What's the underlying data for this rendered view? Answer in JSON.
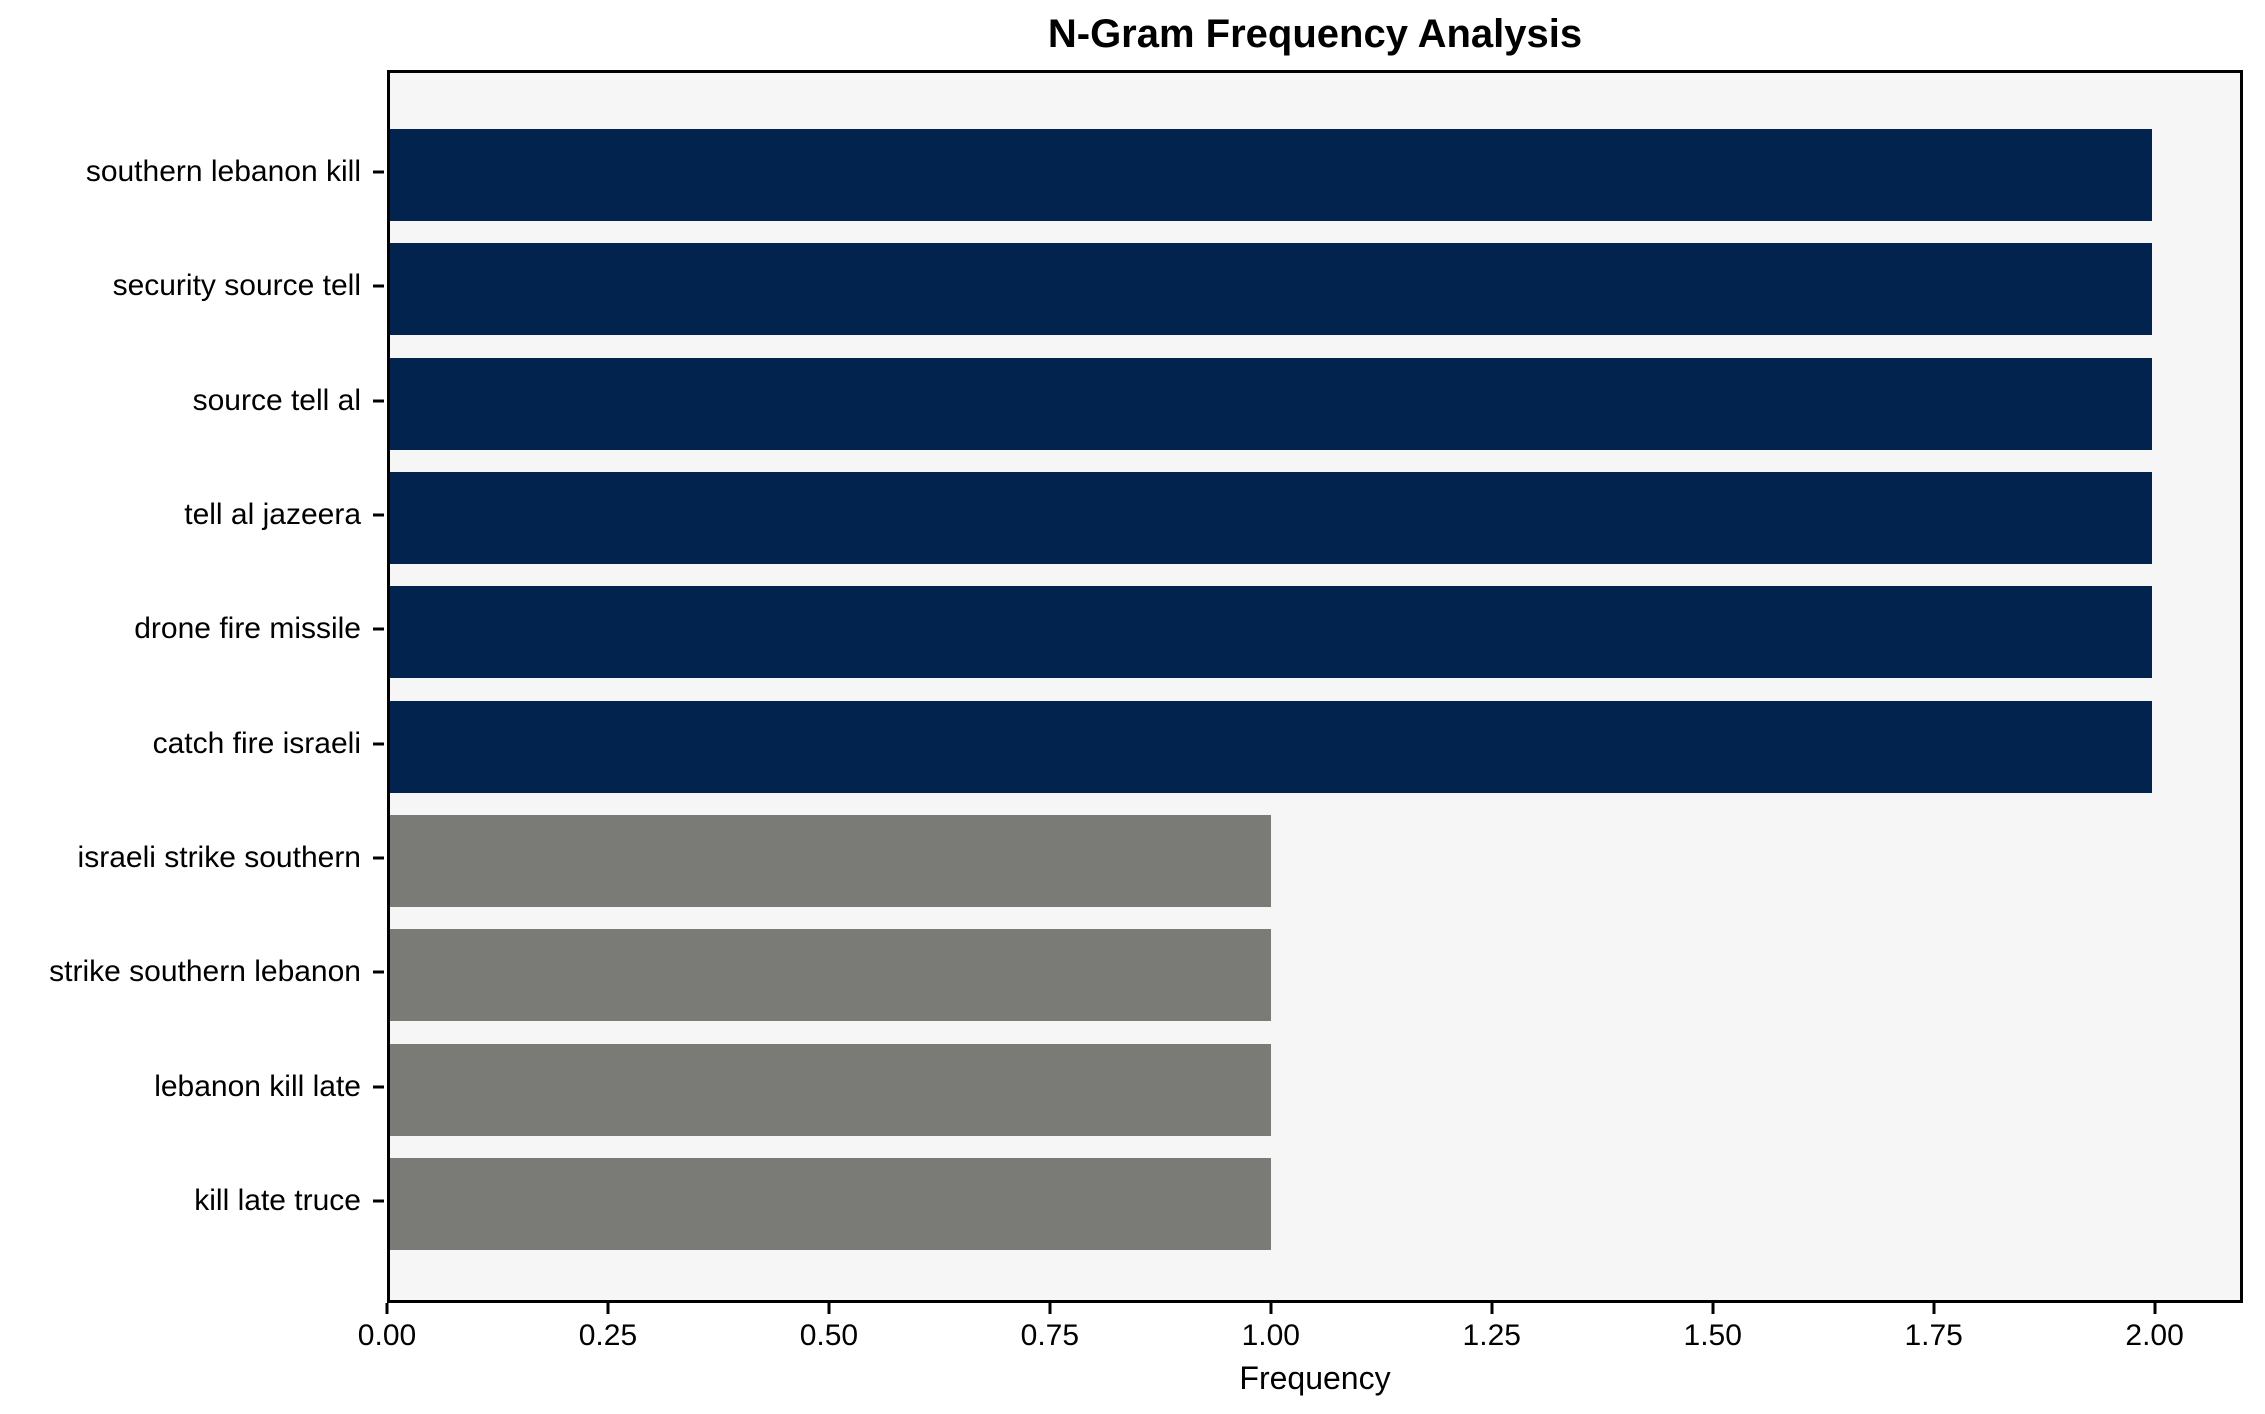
{
  "title": "N-Gram Frequency Analysis",
  "chart_data": {
    "type": "bar",
    "orientation": "horizontal",
    "title": "N-Gram Frequency Analysis",
    "xlabel": "Frequency",
    "ylabel": "",
    "categories": [
      "southern lebanon kill",
      "security source tell",
      "source tell al",
      "tell al jazeera",
      "drone fire missile",
      "catch fire israeli",
      "israeli strike southern",
      "strike southern lebanon",
      "lebanon kill late",
      "kill late truce"
    ],
    "values": [
      2,
      2,
      2,
      2,
      2,
      2,
      1,
      1,
      1,
      1
    ],
    "bar_colors": [
      "#02234d",
      "#02234d",
      "#02234d",
      "#02234d",
      "#02234d",
      "#02234d",
      "#7a7a77",
      "#7a7a77",
      "#7a7a77",
      "#7a7a77"
    ],
    "xlim": [
      0,
      2.1
    ],
    "x_tick_values": [
      0,
      0.25,
      0.5,
      0.75,
      1.0,
      1.25,
      1.5,
      1.75,
      2.0
    ],
    "x_tick_labels": [
      "0.00",
      "0.25",
      "0.50",
      "0.75",
      "1.00",
      "1.25",
      "1.50",
      "1.75",
      "2.00"
    ],
    "grid": false,
    "legend": null,
    "plot_background": "#f6f6f7",
    "figure_background": "#ffffff",
    "colors": {
      "high_frequency": "#02234d",
      "low_frequency": "#7a7a77"
    }
  }
}
